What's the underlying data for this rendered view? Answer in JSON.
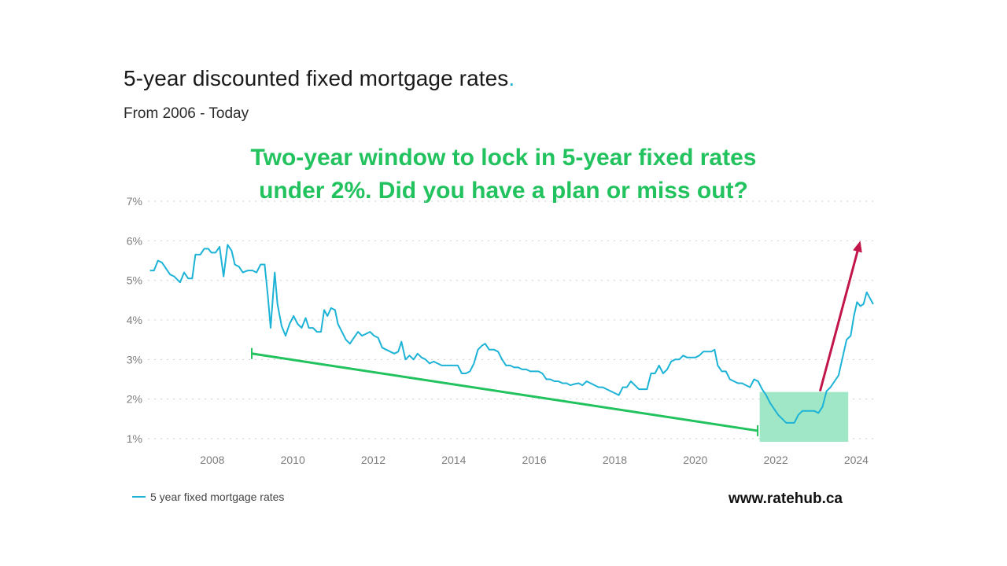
{
  "header": {
    "title": "5-year discounted fixed mortgage rates",
    "title_dot": ".",
    "subtitle": "From 2006 - Today"
  },
  "callout": {
    "line1": "Two-year window to lock in 5-year fixed rates",
    "line2": "under 2%. Did you have a plan or miss out?",
    "color": "#22c25e"
  },
  "source": "www.ratehub.ca",
  "colors": {
    "series": "#1cb3d6",
    "trend": "#22c25e",
    "arrow": "#c2154a",
    "highlight": "#9be6c4",
    "grid": "#d0d0d0"
  },
  "chart_data": {
    "type": "line",
    "title": "5-year discounted fixed mortgage rates",
    "subtitle": "From 2006 - Today",
    "xlabel": "",
    "ylabel": "",
    "xlim": [
      2006.4,
      2024.5
    ],
    "ylim": [
      1,
      7
    ],
    "x_ticks": [
      2008,
      2010,
      2012,
      2014,
      2016,
      2018,
      2020,
      2022,
      2024
    ],
    "y_ticks": [
      {
        "value": 1,
        "label": "1%"
      },
      {
        "value": 2,
        "label": "2%"
      },
      {
        "value": 3,
        "label": "3%"
      },
      {
        "value": 4,
        "label": "4%"
      },
      {
        "value": 5,
        "label": "5%"
      },
      {
        "value": 6,
        "label": "6%"
      },
      {
        "value": 7,
        "label": "7%"
      }
    ],
    "grid": "horizontal-dotted",
    "legend_position": "bottom-left",
    "series": [
      {
        "name": "5 year fixed mortgage rates",
        "points": [
          [
            2006.45,
            5.25
          ],
          [
            2006.55,
            5.25
          ],
          [
            2006.65,
            5.5
          ],
          [
            2006.75,
            5.45
          ],
          [
            2006.85,
            5.3
          ],
          [
            2006.95,
            5.15
          ],
          [
            2007.05,
            5.1
          ],
          [
            2007.2,
            4.95
          ],
          [
            2007.3,
            5.2
          ],
          [
            2007.4,
            5.05
          ],
          [
            2007.5,
            5.05
          ],
          [
            2007.58,
            5.65
          ],
          [
            2007.7,
            5.65
          ],
          [
            2007.8,
            5.8
          ],
          [
            2007.9,
            5.8
          ],
          [
            2007.98,
            5.7
          ],
          [
            2008.08,
            5.7
          ],
          [
            2008.18,
            5.85
          ],
          [
            2008.28,
            5.1
          ],
          [
            2008.38,
            5.9
          ],
          [
            2008.48,
            5.75
          ],
          [
            2008.56,
            5.4
          ],
          [
            2008.66,
            5.35
          ],
          [
            2008.76,
            5.2
          ],
          [
            2008.88,
            5.25
          ],
          [
            2009.0,
            5.25
          ],
          [
            2009.1,
            5.2
          ],
          [
            2009.2,
            5.4
          ],
          [
            2009.3,
            5.4
          ],
          [
            2009.38,
            4.6
          ],
          [
            2009.45,
            3.8
          ],
          [
            2009.55,
            5.2
          ],
          [
            2009.62,
            4.4
          ],
          [
            2009.72,
            3.85
          ],
          [
            2009.82,
            3.6
          ],
          [
            2009.92,
            3.9
          ],
          [
            2010.02,
            4.1
          ],
          [
            2010.12,
            3.9
          ],
          [
            2010.22,
            3.8
          ],
          [
            2010.32,
            4.05
          ],
          [
            2010.4,
            3.8
          ],
          [
            2010.5,
            3.8
          ],
          [
            2010.6,
            3.7
          ],
          [
            2010.7,
            3.7
          ],
          [
            2010.78,
            4.25
          ],
          [
            2010.86,
            4.1
          ],
          [
            2010.95,
            4.3
          ],
          [
            2011.05,
            4.25
          ],
          [
            2011.12,
            3.9
          ],
          [
            2011.22,
            3.7
          ],
          [
            2011.32,
            3.5
          ],
          [
            2011.42,
            3.4
          ],
          [
            2011.52,
            3.55
          ],
          [
            2011.62,
            3.7
          ],
          [
            2011.72,
            3.6
          ],
          [
            2011.82,
            3.65
          ],
          [
            2011.92,
            3.7
          ],
          [
            2012.02,
            3.6
          ],
          [
            2012.12,
            3.55
          ],
          [
            2012.22,
            3.3
          ],
          [
            2012.32,
            3.25
          ],
          [
            2012.42,
            3.2
          ],
          [
            2012.52,
            3.15
          ],
          [
            2012.62,
            3.2
          ],
          [
            2012.7,
            3.45
          ],
          [
            2012.8,
            3.0
          ],
          [
            2012.9,
            3.1
          ],
          [
            2013.0,
            3.0
          ],
          [
            2013.1,
            3.15
          ],
          [
            2013.2,
            3.05
          ],
          [
            2013.3,
            3.0
          ],
          [
            2013.4,
            2.9
          ],
          [
            2013.5,
            2.95
          ],
          [
            2013.6,
            2.9
          ],
          [
            2013.7,
            2.85
          ],
          [
            2013.8,
            2.85
          ],
          [
            2013.9,
            2.85
          ],
          [
            2014.0,
            2.85
          ],
          [
            2014.1,
            2.85
          ],
          [
            2014.2,
            2.65
          ],
          [
            2014.3,
            2.65
          ],
          [
            2014.4,
            2.7
          ],
          [
            2014.5,
            2.9
          ],
          [
            2014.6,
            3.25
          ],
          [
            2014.7,
            3.35
          ],
          [
            2014.78,
            3.4
          ],
          [
            2014.88,
            3.25
          ],
          [
            2015.0,
            3.25
          ],
          [
            2015.1,
            3.2
          ],
          [
            2015.2,
            3.0
          ],
          [
            2015.3,
            2.85
          ],
          [
            2015.4,
            2.85
          ],
          [
            2015.5,
            2.8
          ],
          [
            2015.6,
            2.8
          ],
          [
            2015.7,
            2.75
          ],
          [
            2015.8,
            2.75
          ],
          [
            2015.9,
            2.7
          ],
          [
            2016.0,
            2.7
          ],
          [
            2016.1,
            2.7
          ],
          [
            2016.2,
            2.65
          ],
          [
            2016.3,
            2.5
          ],
          [
            2016.4,
            2.5
          ],
          [
            2016.5,
            2.45
          ],
          [
            2016.6,
            2.45
          ],
          [
            2016.7,
            2.4
          ],
          [
            2016.8,
            2.4
          ],
          [
            2016.9,
            2.35
          ],
          [
            2017.0,
            2.38
          ],
          [
            2017.1,
            2.4
          ],
          [
            2017.2,
            2.35
          ],
          [
            2017.3,
            2.45
          ],
          [
            2017.4,
            2.4
          ],
          [
            2017.5,
            2.35
          ],
          [
            2017.6,
            2.3
          ],
          [
            2017.7,
            2.3
          ],
          [
            2017.8,
            2.25
          ],
          [
            2017.9,
            2.2
          ],
          [
            2018.0,
            2.15
          ],
          [
            2018.1,
            2.1
          ],
          [
            2018.2,
            2.3
          ],
          [
            2018.3,
            2.3
          ],
          [
            2018.4,
            2.45
          ],
          [
            2018.5,
            2.35
          ],
          [
            2018.6,
            2.25
          ],
          [
            2018.7,
            2.25
          ],
          [
            2018.8,
            2.25
          ],
          [
            2018.9,
            2.65
          ],
          [
            2019.0,
            2.65
          ],
          [
            2019.1,
            2.85
          ],
          [
            2019.2,
            2.65
          ],
          [
            2019.3,
            2.75
          ],
          [
            2019.4,
            2.95
          ],
          [
            2019.5,
            3.0
          ],
          [
            2019.6,
            3.0
          ],
          [
            2019.7,
            3.1
          ],
          [
            2019.8,
            3.05
          ],
          [
            2019.9,
            3.05
          ],
          [
            2020.0,
            3.05
          ],
          [
            2020.1,
            3.1
          ],
          [
            2020.2,
            3.2
          ],
          [
            2020.3,
            3.2
          ],
          [
            2020.4,
            3.2
          ],
          [
            2020.48,
            3.25
          ],
          [
            2020.56,
            2.85
          ],
          [
            2020.66,
            2.7
          ],
          [
            2020.76,
            2.7
          ],
          [
            2020.86,
            2.5
          ],
          [
            2020.96,
            2.45
          ],
          [
            2021.06,
            2.4
          ],
          [
            2021.16,
            2.4
          ],
          [
            2021.26,
            2.35
          ],
          [
            2021.36,
            2.3
          ],
          [
            2021.46,
            2.5
          ],
          [
            2021.56,
            2.45
          ],
          [
            2021.66,
            2.25
          ],
          [
            2021.76,
            2.1
          ],
          [
            2021.86,
            1.9
          ],
          [
            2021.96,
            1.75
          ],
          [
            2022.06,
            1.6
          ],
          [
            2022.16,
            1.5
          ],
          [
            2022.26,
            1.4
          ],
          [
            2022.36,
            1.4
          ],
          [
            2022.46,
            1.4
          ],
          [
            2022.56,
            1.6
          ],
          [
            2022.66,
            1.7
          ],
          [
            2022.76,
            1.7
          ],
          [
            2022.86,
            1.7
          ],
          [
            2022.96,
            1.7
          ],
          [
            2023.06,
            1.65
          ],
          [
            2023.16,
            1.8
          ],
          [
            2023.26,
            2.2
          ],
          [
            2023.36,
            2.3
          ],
          [
            2023.46,
            2.45
          ],
          [
            2023.56,
            2.6
          ],
          [
            2023.66,
            3.05
          ],
          [
            2023.76,
            3.5
          ],
          [
            2023.86,
            3.6
          ],
          [
            2023.94,
            4.1
          ],
          [
            2024.02,
            4.45
          ],
          [
            2024.1,
            4.35
          ],
          [
            2024.18,
            4.4
          ],
          [
            2024.26,
            4.7
          ],
          [
            2024.34,
            4.55
          ],
          [
            2024.42,
            4.4
          ]
        ]
      }
    ]
  }
}
